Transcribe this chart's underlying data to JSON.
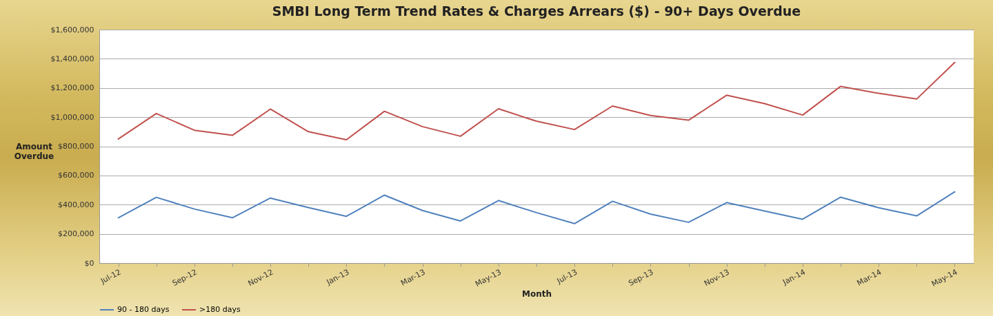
{
  "chart_data": {
    "type": "line",
    "title": "SMBI Long Term Trend Rates & Charges Arrears ($) - 90+ Days Overdue",
    "xlabel": "Month",
    "ylabel": "Amount Overdue",
    "categories": [
      "Jul-12",
      null,
      "Sep-12",
      null,
      "Nov-12",
      null,
      "Jan-13",
      null,
      "Mar-13",
      null,
      "May-13",
      null,
      "Jul-13",
      null,
      "Sep-13",
      null,
      "Nov-13",
      null,
      "Jan-14",
      null,
      "Mar-14",
      null,
      "May-14"
    ],
    "series": [
      {
        "name": "90 - 180 days",
        "color": "#4f81bd",
        "values": [
          310000,
          450000,
          370000,
          310000,
          445000,
          380000,
          320000,
          465000,
          360000,
          288000,
          428000,
          345000,
          270000,
          423000,
          335000,
          279000,
          414000,
          356000,
          300000,
          451000,
          379000,
          323000,
          488000
        ]
      },
      {
        "name": ">180 days",
        "color": "#c0504d",
        "values": [
          850000,
          1025000,
          910000,
          875000,
          1055000,
          900000,
          845000,
          1040000,
          935000,
          869000,
          1057000,
          972000,
          915000,
          1076000,
          1011000,
          979000,
          1150000,
          1093000,
          1014000,
          1211000,
          1163000,
          1124000,
          1375000
        ]
      }
    ],
    "ylim": [
      0,
      1600000
    ],
    "yticks": [
      {
        "value": 0,
        "label": "$0"
      },
      {
        "value": 200000,
        "label": "$200,000"
      },
      {
        "value": 400000,
        "label": "$400,000"
      },
      {
        "value": 600000,
        "label": "$600,000"
      },
      {
        "value": 800000,
        "label": "$800,000"
      },
      {
        "value": 1000000,
        "label": "$1,000,000"
      },
      {
        "value": 1200000,
        "label": "$1,200,000"
      },
      {
        "value": 1400000,
        "label": "$1,400,000"
      },
      {
        "value": 1600000,
        "label": "$1,600,000"
      }
    ],
    "grid": "y",
    "legend": "bottom",
    "marker": "none",
    "line_style": "solid"
  }
}
